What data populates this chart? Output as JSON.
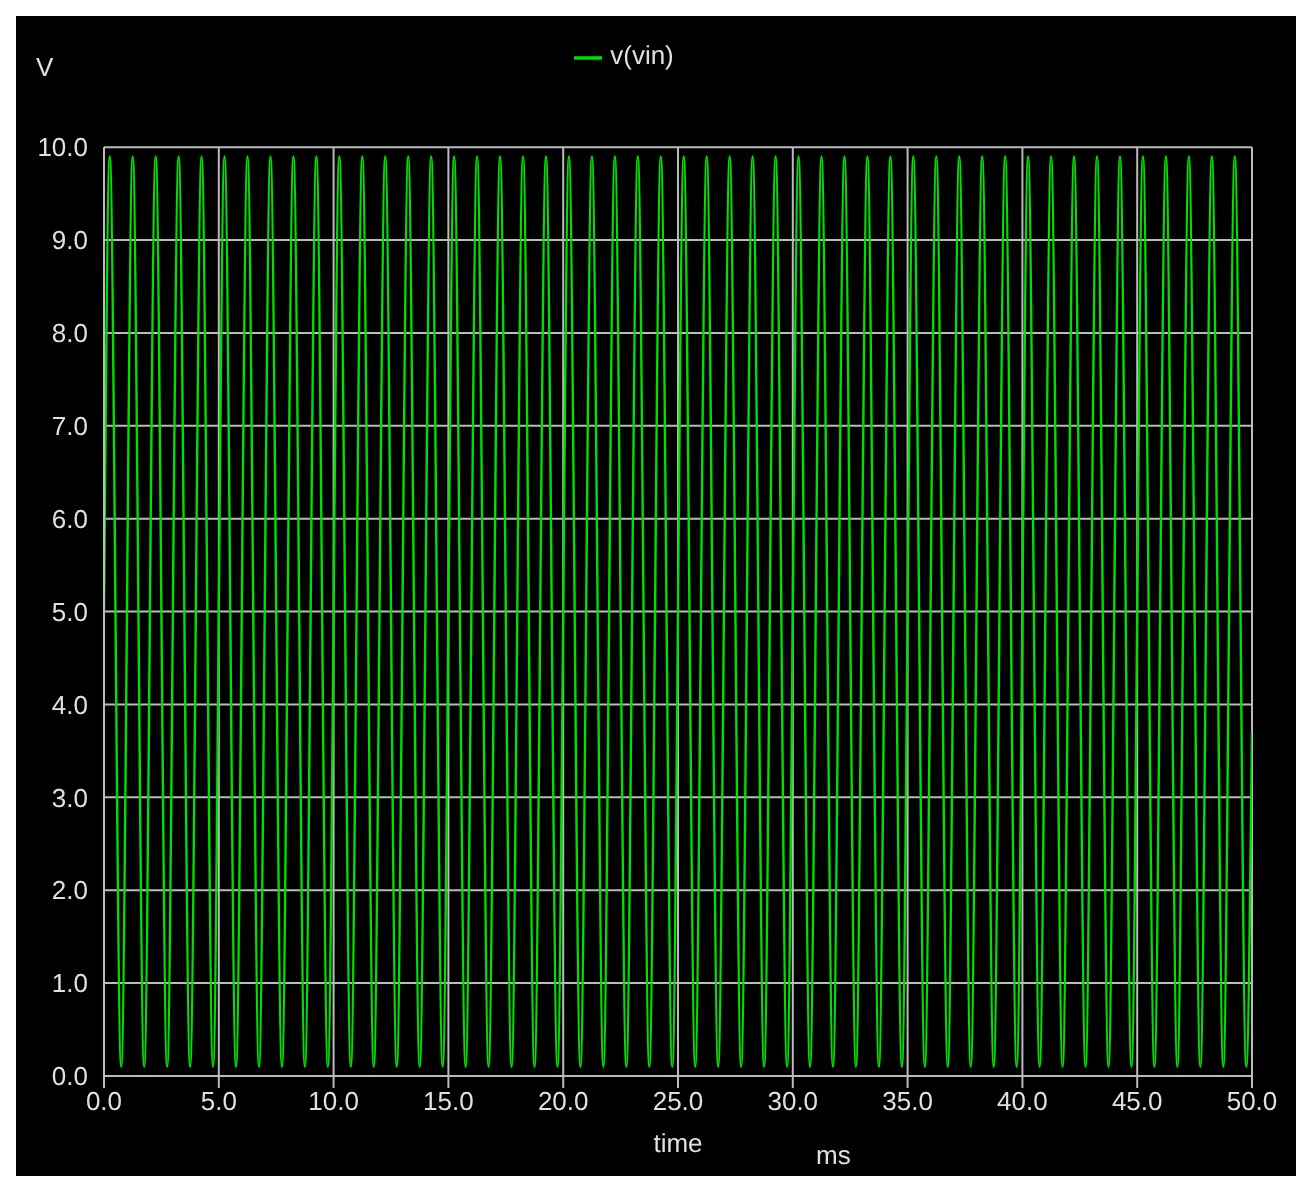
{
  "chart_data": {
    "type": "line",
    "xlabel": "time",
    "ylabel": "V",
    "annotations": [
      "ms"
    ],
    "x": [
      0,
      0.25,
      0.75,
      1.25,
      1.75,
      2.25,
      2.75,
      3.25,
      3.75,
      4.25,
      4.75,
      5.25,
      5.75,
      6.25,
      6.75,
      7.25,
      7.75,
      8.25,
      8.75,
      9.25,
      9.75,
      10.25,
      10.75,
      11.25,
      11.75,
      12.25,
      12.75,
      13.25,
      13.75,
      14.25,
      14.75,
      15.25,
      15.75,
      16.25,
      16.75,
      17.25,
      17.75,
      18.25,
      18.75,
      19.25,
      19.75,
      20.25,
      20.75,
      21.25,
      21.75,
      22.25,
      22.75,
      23.25,
      23.75,
      24.25,
      24.75,
      25.25,
      25.75,
      26.25,
      26.75,
      27.25,
      27.75,
      28.25,
      28.75,
      29.25,
      29.75,
      30.25,
      30.75,
      31.25,
      31.75,
      32.25,
      32.75,
      33.25,
      33.75,
      34.25,
      34.75,
      35.25,
      35.75,
      36.25,
      36.75,
      37.25,
      37.75,
      38.25,
      38.75,
      39.25,
      39.75,
      40.25,
      40.75,
      41.25,
      41.75,
      42.25,
      42.75,
      43.25,
      43.75,
      44.25,
      44.75,
      45.25,
      45.75,
      46.25,
      46.75,
      47.25,
      47.75,
      48.25,
      48.75,
      49.25,
      49.75,
      50
    ],
    "series": [
      {
        "name": "v(vin)",
        "color": "#00e000",
        "values": [
          5,
          9.9,
          0.1,
          9.9,
          0.1,
          9.9,
          0.1,
          9.9,
          0.1,
          9.9,
          0.1,
          9.9,
          0.1,
          9.9,
          0.1,
          9.9,
          0.1,
          9.9,
          0.1,
          9.9,
          0.1,
          9.9,
          0.1,
          9.9,
          0.1,
          9.9,
          0.1,
          9.9,
          0.1,
          9.9,
          0.1,
          9.9,
          0.1,
          9.9,
          0.1,
          9.9,
          0.1,
          9.9,
          0.1,
          9.9,
          0.1,
          9.9,
          0.1,
          9.9,
          0.1,
          9.9,
          0.1,
          9.9,
          0.1,
          9.9,
          0.1,
          9.9,
          0.1,
          9.9,
          0.1,
          9.9,
          0.1,
          9.9,
          0.1,
          9.9,
          0.1,
          9.9,
          0.1,
          9.9,
          0.1,
          9.9,
          0.1,
          9.9,
          0.1,
          9.9,
          0.1,
          9.9,
          0.1,
          9.9,
          0.1,
          9.9,
          0.1,
          9.9,
          0.1,
          9.9,
          0.1,
          9.9,
          0.1,
          9.9,
          0.1,
          9.9,
          0.1,
          9.9,
          0.1,
          9.9,
          0.1,
          9.9,
          0.1,
          9.9,
          0.1,
          9.9,
          0.1,
          9.9,
          0.1,
          9.9,
          0.1,
          3.7
        ]
      }
    ],
    "xlim": [
      0,
      50
    ],
    "ylim": [
      0,
      10
    ],
    "xticks": [
      {
        "value": 0,
        "label": "0.0"
      },
      {
        "value": 5,
        "label": "5.0"
      },
      {
        "value": 10,
        "label": "10.0"
      },
      {
        "value": 15,
        "label": "15.0"
      },
      {
        "value": 20,
        "label": "20.0"
      },
      {
        "value": 25,
        "label": "25.0"
      },
      {
        "value": 30,
        "label": "30.0"
      },
      {
        "value": 35,
        "label": "35.0"
      },
      {
        "value": 40,
        "label": "40.0"
      },
      {
        "value": 45,
        "label": "45.0"
      },
      {
        "value": 50,
        "label": "50.0"
      }
    ],
    "yticks": [
      {
        "value": 0,
        "label": "0.0"
      },
      {
        "value": 1,
        "label": "1.0"
      },
      {
        "value": 2,
        "label": "2.0"
      },
      {
        "value": 3,
        "label": "3.0"
      },
      {
        "value": 4,
        "label": "4.0"
      },
      {
        "value": 5,
        "label": "5.0"
      },
      {
        "value": 6,
        "label": "6.0"
      },
      {
        "value": 7,
        "label": "7.0"
      },
      {
        "value": 8,
        "label": "8.0"
      },
      {
        "value": 9,
        "label": "9.0"
      },
      {
        "value": 10,
        "label": "10.0"
      }
    ],
    "grid": true,
    "legend": "top",
    "marker": "none",
    "line_style": "solid"
  }
}
